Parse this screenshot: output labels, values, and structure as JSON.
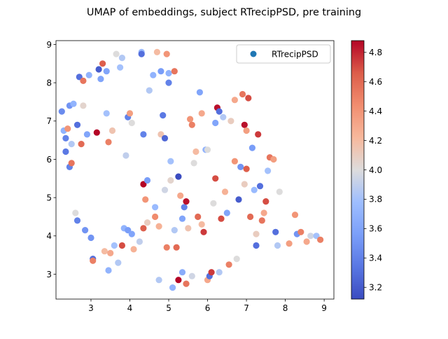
{
  "chart_data": {
    "type": "scatter",
    "title": "UMAP of embeddings, subject RTrecipPSD, pre training",
    "xlim": [
      2.1,
      9.25
    ],
    "ylim": [
      2.35,
      9.1
    ],
    "x_ticks": [
      3,
      4,
      5,
      6,
      7,
      8,
      9
    ],
    "y_ticks": [
      3,
      4,
      5,
      6,
      7,
      8,
      9
    ],
    "legend": {
      "label": "RTrecipPSD",
      "placement": "top-right"
    },
    "colorbar": {
      "colormap": "coolwarm",
      "range": [
        3.12,
        4.88
      ],
      "ticks": [
        3.2,
        3.4,
        3.6,
        3.8,
        4.0,
        4.2,
        4.4,
        4.6,
        4.8
      ]
    },
    "points": [
      [
        2.25,
        7.25,
        3.45
      ],
      [
        2.3,
        6.75,
        3.7
      ],
      [
        2.35,
        6.55,
        3.4
      ],
      [
        2.35,
        6.2,
        3.35
      ],
      [
        2.45,
        7.4,
        3.5
      ],
      [
        2.45,
        5.8,
        3.4
      ],
      [
        2.5,
        5.9,
        4.55
      ],
      [
        2.4,
        6.8,
        4.4
      ],
      [
        2.55,
        7.45,
        3.7
      ],
      [
        2.6,
        4.6,
        4.0
      ],
      [
        2.65,
        6.9,
        3.3
      ],
      [
        2.65,
        4.4,
        3.4
      ],
      [
        2.7,
        8.15,
        3.3
      ],
      [
        2.75,
        6.4,
        4.6
      ],
      [
        2.8,
        7.4,
        4.05
      ],
      [
        2.8,
        8.05,
        4.55
      ],
      [
        2.85,
        4.15,
        3.5
      ],
      [
        2.95,
        8.2,
        3.7
      ],
      [
        3.0,
        3.95,
        3.5
      ],
      [
        3.05,
        3.4,
        3.3
      ],
      [
        3.05,
        3.35,
        4.5
      ],
      [
        3.15,
        6.7,
        4.9
      ],
      [
        3.2,
        8.35,
        3.2
      ],
      [
        3.25,
        8.1,
        3.6
      ],
      [
        3.3,
        8.5,
        4.65
      ],
      [
        3.35,
        3.6,
        4.2
      ],
      [
        3.4,
        8.3,
        3.6
      ],
      [
        3.4,
        7.2,
        3.8
      ],
      [
        3.45,
        6.45,
        4.5
      ],
      [
        3.5,
        3.55,
        4.3
      ],
      [
        3.55,
        6.75,
        4.15
      ],
      [
        3.6,
        3.75,
        3.8
      ],
      [
        3.65,
        8.75,
        4.0
      ],
      [
        3.7,
        3.3,
        3.85
      ],
      [
        3.75,
        8.4,
        3.8
      ],
      [
        3.8,
        8.65,
        3.85
      ],
      [
        3.8,
        3.75,
        4.7
      ],
      [
        3.85,
        4.2,
        3.7
      ],
      [
        3.9,
        6.1,
        3.9
      ],
      [
        3.95,
        7.1,
        3.4
      ],
      [
        3.95,
        4.15,
        3.55
      ],
      [
        4.0,
        7.2,
        4.35
      ],
      [
        4.05,
        6.95,
        4.0
      ],
      [
        4.1,
        3.65,
        4.25
      ],
      [
        4.25,
        3.85,
        3.9
      ],
      [
        4.3,
        8.8,
        3.75
      ],
      [
        4.35,
        5.35,
        4.9
      ],
      [
        4.35,
        6.65,
        3.4
      ],
      [
        4.35,
        4.2,
        4.65
      ],
      [
        4.4,
        4.95,
        4.4
      ],
      [
        4.45,
        5.45,
        3.55
      ],
      [
        4.5,
        7.8,
        3.85
      ],
      [
        4.6,
        8.2,
        3.7
      ],
      [
        4.65,
        4.5,
        4.45
      ],
      [
        4.7,
        8.8,
        4.2
      ],
      [
        4.75,
        4.25,
        4.25
      ],
      [
        4.75,
        2.85,
        3.85
      ],
      [
        4.8,
        6.65,
        4.15
      ],
      [
        4.8,
        8.3,
        3.55
      ],
      [
        4.85,
        7.15,
        3.35
      ],
      [
        4.9,
        6.55,
        3.25
      ],
      [
        4.9,
        5.2,
        3.95
      ],
      [
        4.95,
        3.7,
        4.5
      ],
      [
        4.95,
        8.75,
        4.4
      ],
      [
        5.0,
        8.25,
        3.7
      ],
      [
        5.0,
        8.0,
        3.4
      ],
      [
        5.05,
        5.95,
        3.8
      ],
      [
        5.1,
        2.65,
        3.7
      ],
      [
        5.15,
        8.3,
        4.55
      ],
      [
        5.2,
        3.7,
        4.6
      ],
      [
        5.25,
        5.55,
        3.1
      ],
      [
        5.25,
        2.85,
        4.9
      ],
      [
        5.3,
        5.05,
        4.3
      ],
      [
        5.35,
        3.05,
        3.65
      ],
      [
        5.4,
        4.75,
        3.4
      ],
      [
        5.45,
        4.9,
        4.85
      ],
      [
        5.45,
        2.75,
        4.55
      ],
      [
        5.5,
        4.2,
        4.15
      ],
      [
        5.55,
        7.05,
        4.4
      ],
      [
        5.6,
        6.9,
        4.5
      ],
      [
        5.65,
        5.9,
        4.0
      ],
      [
        5.7,
        6.2,
        4.2
      ],
      [
        5.75,
        4.5,
        4.6
      ],
      [
        5.8,
        7.75,
        3.6
      ],
      [
        5.85,
        7.2,
        4.3
      ],
      [
        5.9,
        4.1,
        4.75
      ],
      [
        5.95,
        6.25,
        3.7
      ],
      [
        6.0,
        2.85,
        4.3
      ],
      [
        6.05,
        2.95,
        3.3
      ],
      [
        6.1,
        3.05,
        4.75
      ],
      [
        6.15,
        4.85,
        4.0
      ],
      [
        6.2,
        5.5,
        4.7
      ],
      [
        6.2,
        6.95,
        3.6
      ],
      [
        6.25,
        7.35,
        4.85
      ],
      [
        6.3,
        7.25,
        3.3
      ],
      [
        6.3,
        3.05,
        3.85
      ],
      [
        6.35,
        4.45,
        4.7
      ],
      [
        6.4,
        7.1,
        3.85
      ],
      [
        6.5,
        4.6,
        3.6
      ],
      [
        6.55,
        3.25,
        4.5
      ],
      [
        6.6,
        7.0,
        4.1
      ],
      [
        6.7,
        7.55,
        4.3
      ],
      [
        6.75,
        3.4,
        4.0
      ],
      [
        6.8,
        4.95,
        3.2
      ],
      [
        6.85,
        5.8,
        3.5
      ],
      [
        6.9,
        7.7,
        4.55
      ],
      [
        6.95,
        6.9,
        4.85
      ],
      [
        7.0,
        6.75,
        4.35
      ],
      [
        7.05,
        7.6,
        4.7
      ],
      [
        7.1,
        4.5,
        4.6
      ],
      [
        7.15,
        6.3,
        3.55
      ],
      [
        7.2,
        5.2,
        3.75
      ],
      [
        7.25,
        3.75,
        3.3
      ],
      [
        7.3,
        6.65,
        4.75
      ],
      [
        7.35,
        5.3,
        3.3
      ],
      [
        7.4,
        4.4,
        4.55
      ],
      [
        7.45,
        4.6,
        4.3
      ],
      [
        7.5,
        4.9,
        4.7
      ],
      [
        7.55,
        5.7,
        3.8
      ],
      [
        7.6,
        6.05,
        4.55
      ],
      [
        7.7,
        6.0,
        4.35
      ],
      [
        7.75,
        4.1,
        3.3
      ],
      [
        7.8,
        3.75,
        3.85
      ],
      [
        7.85,
        5.15,
        4.0
      ],
      [
        8.1,
        3.8,
        4.35
      ],
      [
        8.25,
        4.55,
        4.4
      ],
      [
        8.3,
        4.05,
        3.5
      ],
      [
        8.4,
        4.1,
        4.5
      ],
      [
        8.55,
        3.85,
        4.3
      ],
      [
        8.65,
        4.0,
        3.95
      ],
      [
        8.8,
        4.0,
        3.8
      ],
      [
        8.9,
        3.9,
        4.5
      ],
      [
        2.5,
        6.4,
        3.85
      ],
      [
        2.9,
        6.65,
        3.6
      ],
      [
        3.45,
        3.1,
        3.7
      ],
      [
        4.05,
        4.05,
        3.6
      ],
      [
        4.45,
        4.35,
        4.1
      ],
      [
        5.15,
        4.15,
        3.85
      ],
      [
        5.35,
        4.45,
        3.6
      ],
      [
        5.6,
        2.95,
        3.95
      ],
      [
        6.45,
        5.15,
        4.25
      ],
      [
        6.7,
        5.95,
        4.4
      ],
      [
        7.0,
        5.75,
        4.65
      ],
      [
        7.25,
        4.05,
        4.1
      ],
      [
        5.05,
        5.45,
        4.05
      ],
      [
        4.65,
        4.75,
        3.75
      ],
      [
        6.0,
        6.25,
        4.0
      ],
      [
        6.95,
        5.35,
        4.1
      ],
      [
        5.85,
        4.3,
        4.2
      ],
      [
        4.3,
        8.75,
        3.3
      ]
    ]
  }
}
